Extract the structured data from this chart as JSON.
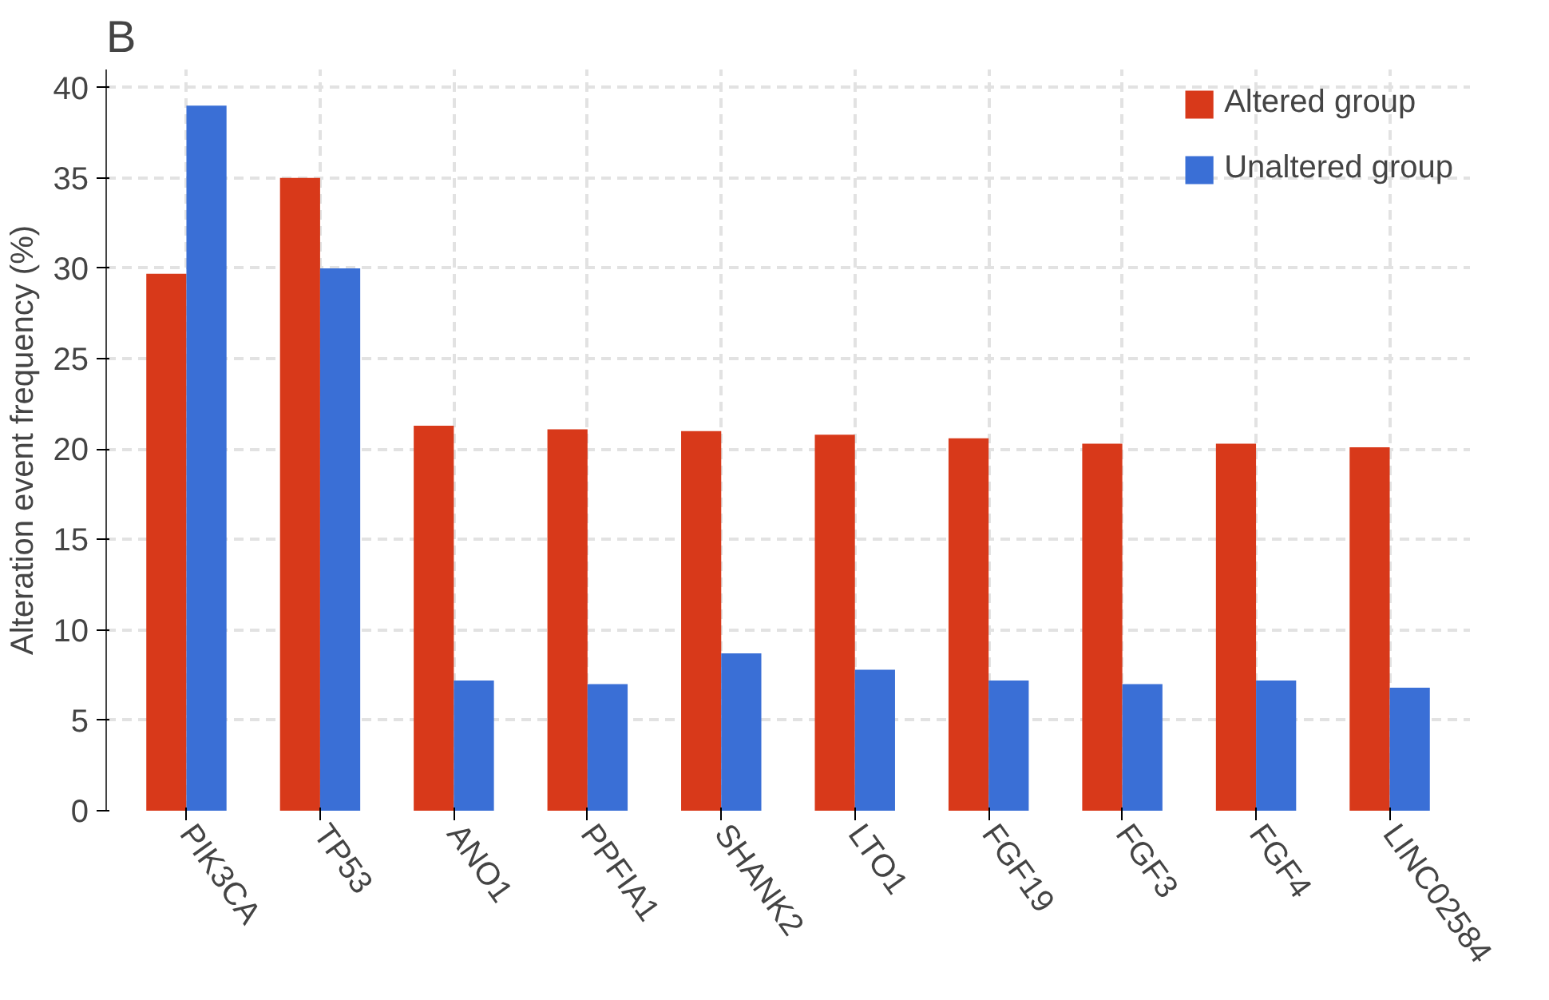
{
  "chart_data": {
    "type": "bar",
    "title": "B",
    "ylabel": "Alteration event frequency (%)",
    "categories": [
      "PIK3CA",
      "TP53",
      "ANO1",
      "PPFIA1",
      "SHANK2",
      "LTO1",
      "FGF19",
      "FGF3",
      "FGF4",
      "LINC02584"
    ],
    "series": [
      {
        "name": "Altered group",
        "color": "#d8391a",
        "values": [
          29.7,
          35.0,
          21.3,
          21.1,
          21.0,
          20.8,
          20.6,
          20.3,
          20.3,
          20.1
        ]
      },
      {
        "name": "Unaltered group",
        "color": "#3a6fd6",
        "values": [
          39.0,
          30.0,
          7.2,
          7.0,
          8.7,
          7.8,
          7.2,
          7.0,
          7.2,
          6.8
        ]
      }
    ],
    "ylim": [
      0,
      41
    ],
    "yticks": [
      0,
      5,
      10,
      15,
      20,
      25,
      30,
      35,
      40
    ],
    "grid": true,
    "legend": "top right"
  }
}
